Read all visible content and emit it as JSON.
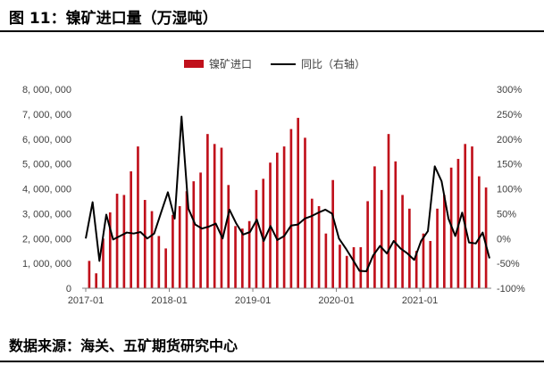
{
  "figure_title": "图 11：镍矿进口量（万湿吨）",
  "source": "数据来源：海关、五矿期货研究中心",
  "colors": {
    "bar": "#c0101b",
    "line": "#000000",
    "axis": "#808080"
  },
  "chart_data": {
    "type": "bar+line",
    "left_axis": {
      "min": 0,
      "max": 8000000,
      "ticks": [
        "0",
        "1, 000, 000",
        "2, 000, 000",
        "3, 000, 000",
        "4, 000, 000",
        "5, 000, 000",
        "6, 000, 000",
        "7, 000, 000",
        "8, 000, 000"
      ]
    },
    "right_axis": {
      "min": -100,
      "max": 300,
      "ticks": [
        "-100%",
        "-50%",
        "0%",
        "50%",
        "100%",
        "150%",
        "200%",
        "250%",
        "300%"
      ]
    },
    "x_tick_labels": [
      "2017-01",
      "2018-01",
      "2019-01",
      "2020-01",
      "2021-01"
    ],
    "x_tick_index": [
      0,
      12,
      24,
      36,
      48
    ],
    "legend": {
      "position": "top-center"
    },
    "series": [
      {
        "name": "镍矿进口",
        "kind": "bar",
        "axis": "left",
        "values": [
          1100000,
          600000,
          2000000,
          3050000,
          3800000,
          3750000,
          4700000,
          5700000,
          3550000,
          3100000,
          2100000,
          1600000,
          2950000,
          3300000,
          3900000,
          4300000,
          4650000,
          6200000,
          5800000,
          5650000,
          4150000,
          2500000,
          2400000,
          2700000,
          3950000,
          4400000,
          5050000,
          5450000,
          5700000,
          6400000,
          6850000,
          6050000,
          3600000,
          3300000,
          2200000,
          4350000,
          1750000,
          1300000,
          1650000,
          1650000,
          3500000,
          4900000,
          3950000,
          6200000,
          5100000,
          3750000,
          3200000,
          1500000,
          2200000,
          1900000,
          3200000,
          3750000,
          4850000,
          5200000,
          5800000,
          5700000,
          4500000,
          4050000
        ]
      },
      {
        "name": "同比（右轴）",
        "kind": "line",
        "axis": "right",
        "values": [
          0,
          73,
          -45,
          48,
          -2,
          5,
          12,
          10,
          13,
          0,
          10,
          52,
          93,
          40,
          245,
          60,
          28,
          20,
          24,
          30,
          0,
          58,
          30,
          8,
          13,
          38,
          -5,
          25,
          -3,
          5,
          26,
          28,
          40,
          45,
          52,
          58,
          50,
          0,
          -20,
          -42,
          -65,
          -66,
          -34,
          -15,
          -30,
          -5,
          -20,
          -30,
          -43,
          -5,
          15,
          145,
          115,
          40,
          5,
          52,
          -8,
          -10,
          12,
          -40
        ],
        "line_x_offset": -2
      }
    ]
  }
}
